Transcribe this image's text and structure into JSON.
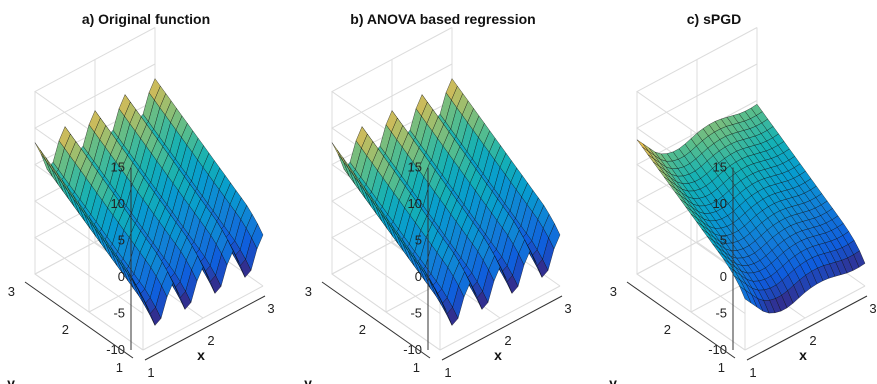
{
  "chart_data": [
    {
      "type": "surface",
      "title": "a) Original function",
      "xlabel": "x",
      "ylabel": "y",
      "xlim": [
        1,
        3
      ],
      "ylim": [
        1,
        3
      ],
      "zlim": [
        -10,
        15
      ],
      "xticks": [
        "1",
        "2",
        "3"
      ],
      "yticks": [
        "1",
        "2",
        "3"
      ],
      "zticks": [
        "-10",
        "-5",
        "0",
        "5",
        "10",
        "15"
      ],
      "colormap": "parula",
      "grid": true,
      "surface": {
        "x_grid": [
          1.0,
          1.1,
          1.2,
          1.3,
          1.4,
          1.5,
          1.6,
          1.7,
          1.8,
          1.9,
          2.0,
          2.1,
          2.2,
          2.3,
          2.4,
          2.5,
          2.6,
          2.7,
          2.8,
          2.9,
          3.0
        ],
        "y_grid": [
          1.0,
          1.1,
          1.2,
          1.3,
          1.4,
          1.5,
          1.6,
          1.7,
          1.8,
          1.9,
          2.0,
          2.1,
          2.2,
          2.3,
          2.4,
          2.5,
          2.6,
          2.7,
          2.8,
          2.9,
          3.0
        ],
        "x_profile": [
          1.0,
          -1.0,
          -3.5,
          -3.0,
          -0.5,
          1.0,
          -1.0,
          -3.5,
          -3.0,
          -0.5,
          1.0,
          -1.0,
          -3.5,
          -3.0,
          -0.5,
          1.0,
          -1.0,
          -3.5,
          -3.0,
          -0.5,
          1.0
        ],
        "y_profile": [
          -4.0,
          -3.0,
          -2.2,
          -1.5,
          -1.0,
          -0.5,
          0.0,
          0.5,
          1.0,
          1.5,
          2.0,
          2.5,
          3.0,
          3.5,
          4.0,
          4.5,
          5.0,
          5.5,
          6.0,
          6.5,
          7.0
        ]
      }
    },
    {
      "type": "surface",
      "title": "b) ANOVA based regression",
      "xlabel": "x",
      "ylabel": "y",
      "xlim": [
        1,
        3
      ],
      "ylim": [
        1,
        3
      ],
      "zlim": [
        -10,
        15
      ],
      "xticks": [
        "1",
        "2",
        "3"
      ],
      "yticks": [
        "1",
        "2",
        "3"
      ],
      "zticks": [
        "-10",
        "-5",
        "0",
        "5",
        "10",
        "15"
      ],
      "colormap": "parula",
      "grid": true,
      "surface": {
        "x_grid": [
          1.0,
          1.1,
          1.2,
          1.3,
          1.4,
          1.5,
          1.6,
          1.7,
          1.8,
          1.9,
          2.0,
          2.1,
          2.2,
          2.3,
          2.4,
          2.5,
          2.6,
          2.7,
          2.8,
          2.9,
          3.0
        ],
        "y_grid": [
          1.0,
          1.1,
          1.2,
          1.3,
          1.4,
          1.5,
          1.6,
          1.7,
          1.8,
          1.9,
          2.0,
          2.1,
          2.2,
          2.3,
          2.4,
          2.5,
          2.6,
          2.7,
          2.8,
          2.9,
          3.0
        ],
        "x_profile": [
          1.0,
          -1.0,
          -3.5,
          -3.0,
          -0.5,
          1.0,
          -1.0,
          -3.5,
          -3.0,
          -0.5,
          1.0,
          -1.0,
          -3.5,
          -3.0,
          -0.5,
          1.0,
          -1.0,
          -3.5,
          -3.0,
          -0.5,
          1.0
        ],
        "y_profile": [
          -4.0,
          -3.0,
          -2.2,
          -1.5,
          -1.0,
          -0.5,
          0.0,
          0.5,
          1.0,
          1.5,
          2.0,
          2.5,
          3.0,
          3.5,
          4.0,
          4.5,
          5.0,
          5.5,
          6.0,
          6.5,
          7.0
        ]
      }
    },
    {
      "type": "surface",
      "title": "c) sPGD",
      "xlabel": "x",
      "ylabel": "y",
      "xlim": [
        1,
        3
      ],
      "ylim": [
        1,
        3
      ],
      "zlim": [
        -10,
        15
      ],
      "xticks": [
        "1",
        "2",
        "3"
      ],
      "yticks": [
        "1",
        "2",
        "3"
      ],
      "zticks": [
        "-10",
        "-5",
        "0",
        "5",
        "10",
        "15"
      ],
      "colormap": "parula",
      "grid": true,
      "surface": {
        "x_grid": [
          1.0,
          1.1,
          1.2,
          1.3,
          1.4,
          1.5,
          1.6,
          1.7,
          1.8,
          1.9,
          2.0,
          2.1,
          2.2,
          2.3,
          2.4,
          2.5,
          2.6,
          2.7,
          2.8,
          2.9,
          3.0
        ],
        "y_grid": [
          1.0,
          1.1,
          1.2,
          1.3,
          1.4,
          1.5,
          1.6,
          1.7,
          1.8,
          1.9,
          2.0,
          2.1,
          2.2,
          2.3,
          2.4,
          2.5,
          2.6,
          2.7,
          2.8,
          2.9,
          3.0
        ],
        "x_profile": [
          1.5,
          0.5,
          -0.5,
          -1.5,
          -2.2,
          -2.6,
          -2.8,
          -2.8,
          -2.6,
          -2.3,
          -2.0,
          -1.8,
          -1.7,
          -1.7,
          -1.8,
          -2.0,
          -2.2,
          -2.4,
          -2.5,
          -2.5,
          -2.4
        ],
        "y_profile": [
          -4.5,
          -3.3,
          -2.4,
          -1.7,
          -1.1,
          -0.6,
          -0.1,
          0.4,
          0.9,
          1.4,
          1.9,
          2.4,
          2.9,
          3.4,
          3.9,
          4.4,
          4.9,
          5.4,
          5.9,
          6.4,
          6.9
        ]
      }
    }
  ]
}
